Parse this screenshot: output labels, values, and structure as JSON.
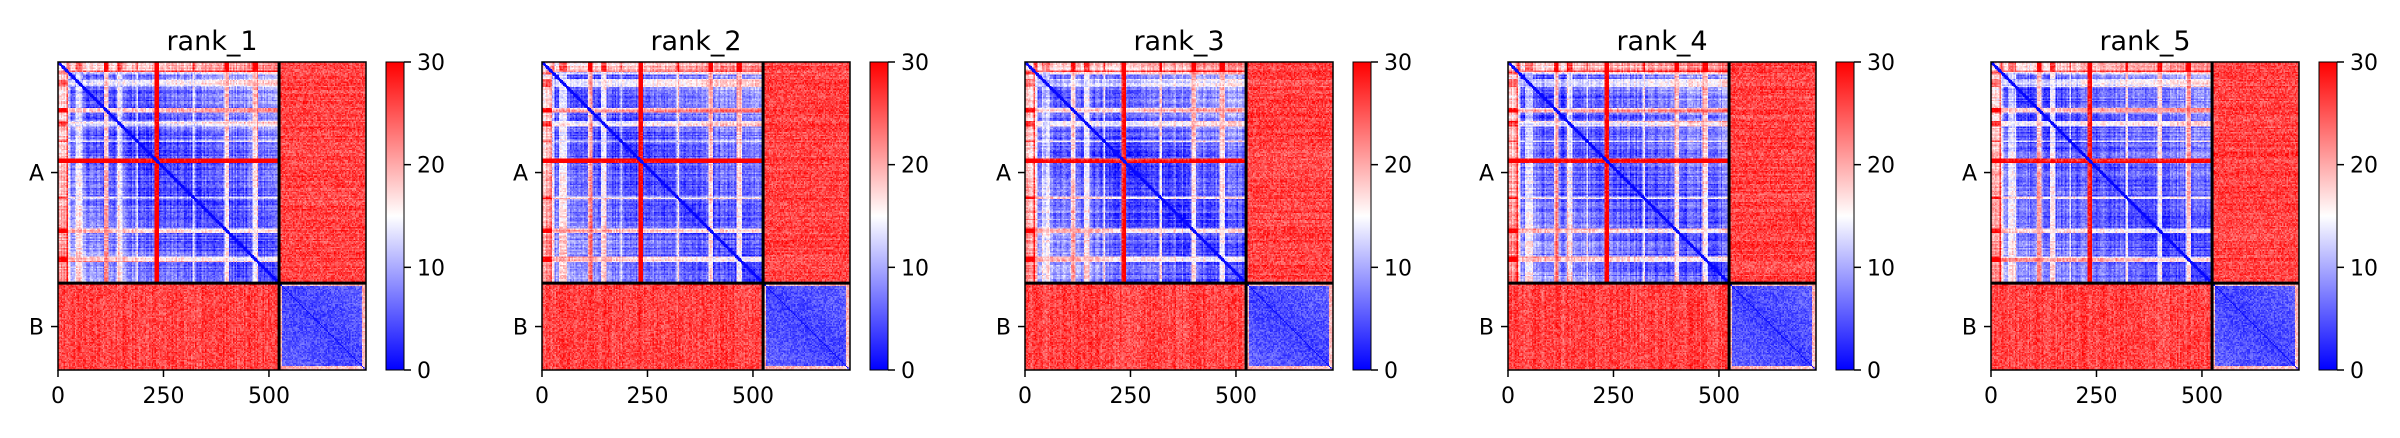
{
  "chart_data": {
    "type": "heatmap",
    "panels": [
      {
        "title": "rank_1"
      },
      {
        "title": "rank_2"
      },
      {
        "title": "rank_3"
      },
      {
        "title": "rank_4"
      },
      {
        "title": "rank_5"
      }
    ],
    "matrix_size": 730,
    "chain_boundary": 524,
    "chains": [
      {
        "label": "A",
        "start": 0,
        "end": 524
      },
      {
        "label": "B",
        "start": 524,
        "end": 730
      }
    ],
    "x_ticks": [
      {
        "value": 0,
        "label": "0"
      },
      {
        "value": 250,
        "label": "250"
      },
      {
        "value": 500,
        "label": "500"
      }
    ],
    "colorbar": {
      "min": 0,
      "max": 30,
      "ticks": [
        {
          "value": 0,
          "label": "0"
        },
        {
          "value": 10,
          "label": "10"
        },
        {
          "value": 20,
          "label": "20"
        },
        {
          "value": 30,
          "label": "30"
        }
      ],
      "colors": [
        "#0000ff",
        "#ffffff",
        "#ff0000"
      ]
    },
    "grid": false
  }
}
